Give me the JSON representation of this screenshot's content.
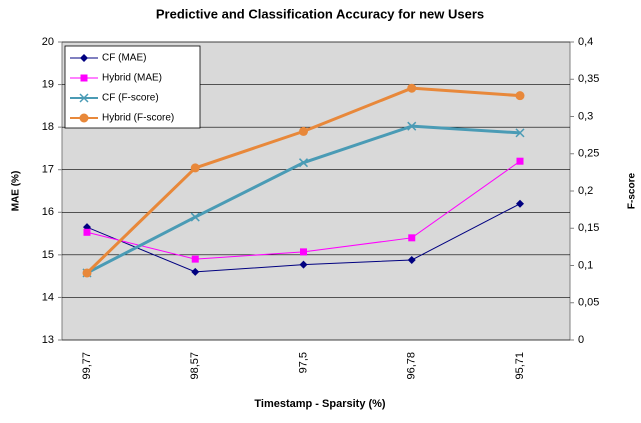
{
  "chart_data": {
    "type": "line",
    "title": "Predictive and Classification Accuracy for new Users",
    "x_label": "Timestamp - Sparsity (%)",
    "y_label": "MAE (%)",
    "y2_label": "F-score",
    "categories": [
      "99,77",
      "98,57",
      "97,5",
      "96,78",
      "95,71"
    ],
    "ylim": [
      13,
      20
    ],
    "yticks": [
      13,
      14,
      15,
      16,
      17,
      18,
      19,
      20
    ],
    "y2lim": [
      0,
      0.4
    ],
    "y2ticks": [
      0,
      {
        "value": 0.05,
        "label": "0,05"
      },
      {
        "value": 0.1,
        "label": "0,1"
      },
      {
        "value": 0.15,
        "label": "0,15"
      },
      {
        "value": 0.2,
        "label": "0,2"
      },
      {
        "value": 0.25,
        "label": "0,25"
      },
      {
        "value": 0.3,
        "label": "0,3"
      },
      {
        "value": 0.35,
        "label": "0,35"
      },
      {
        "value": 0.4,
        "label": "0,4"
      }
    ],
    "grid": true,
    "legend": "top-left",
    "series": [
      {
        "name": "CF (MAE)",
        "color": "#000080",
        "marker": "diamond",
        "line_width": 1,
        "values": [
          15.65,
          14.6,
          14.77,
          14.88,
          16.2
        ]
      },
      {
        "name": "Hybrid (MAE)",
        "color": "#ff00ff",
        "marker": "square",
        "line_width": 1,
        "values": [
          15.53,
          14.9,
          15.07,
          15.4,
          17.2
        ]
      },
      {
        "name": "CF (F-score)",
        "color": "#4a9bb5",
        "marker": "x",
        "line_width": 3,
        "axis": "y2",
        "values": [
          0.09,
          0.165,
          0.238,
          0.287,
          0.278
        ]
      },
      {
        "name": "Hybrid (F-score)",
        "color": "#e8883a",
        "marker": "circle",
        "line_width": 3,
        "axis": "y2",
        "values": [
          0.09,
          0.231,
          0.28,
          0.338,
          0.328
        ]
      }
    ]
  }
}
